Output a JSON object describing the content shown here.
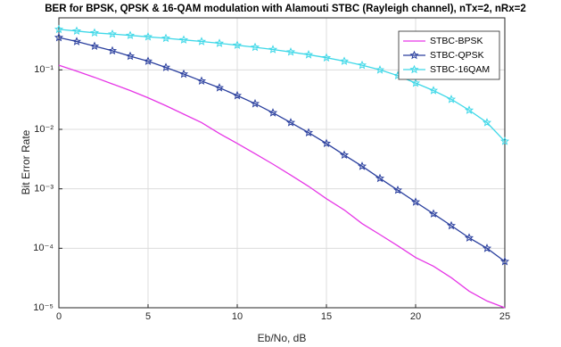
{
  "chart_data": {
    "type": "line",
    "title": "BER for BPSK, QPSK & 16-QAM modulation with Alamouti STBC (Rayleigh channel), nTx=2, nRx=2",
    "x_label": "Eb/No, dB",
    "y_label": "Bit Error Rate",
    "x": [
      0,
      1,
      2,
      3,
      4,
      5,
      6,
      7,
      8,
      9,
      10,
      11,
      12,
      13,
      14,
      15,
      16,
      17,
      18,
      19,
      20,
      21,
      22,
      23,
      24,
      25
    ],
    "series": [
      {
        "name": "STBC-BPSK",
        "color": "#e636e6",
        "marker": "none",
        "values": [
          0.12,
          0.095,
          0.075,
          0.058,
          0.045,
          0.034,
          0.025,
          0.018,
          0.013,
          0.0085,
          0.0058,
          0.0039,
          0.0026,
          0.0017,
          0.0011,
          0.00068,
          0.00044,
          0.00026,
          0.00017,
          0.00011,
          7e-05,
          5e-05,
          3.2e-05,
          1.9e-05,
          1.3e-05,
          1e-05
        ]
      },
      {
        "name": "STBC-QPSK",
        "color": "#2a3f9e",
        "marker": "star",
        "values": [
          0.35,
          0.3,
          0.25,
          0.21,
          0.17,
          0.14,
          0.11,
          0.085,
          0.065,
          0.05,
          0.037,
          0.027,
          0.019,
          0.013,
          0.0088,
          0.0058,
          0.0037,
          0.0024,
          0.0015,
          0.00095,
          0.0006,
          0.00038,
          0.00024,
          0.00015,
          0.0001,
          6e-05
        ]
      },
      {
        "name": "STBC-16QAM",
        "color": "#3fd8e8",
        "marker": "star",
        "values": [
          0.48,
          0.45,
          0.42,
          0.4,
          0.38,
          0.36,
          0.34,
          0.32,
          0.3,
          0.28,
          0.26,
          0.24,
          0.22,
          0.2,
          0.18,
          0.16,
          0.14,
          0.12,
          0.1,
          0.08,
          0.06,
          0.045,
          0.032,
          0.021,
          0.013,
          0.0063
        ]
      }
    ],
    "xlim": [
      0,
      25
    ],
    "xticks": [
      0,
      5,
      10,
      15,
      20,
      25
    ],
    "ylim": [
      1e-05,
      0.75
    ],
    "y_log": true,
    "yticks": [
      {
        "value": 1e-05,
        "label": "10⁻⁵"
      },
      {
        "value": 0.0001,
        "label": "10⁻⁴"
      },
      {
        "value": 0.001,
        "label": "10⁻³"
      },
      {
        "value": 0.01,
        "label": "10⁻²"
      },
      {
        "value": 0.1,
        "label": "10⁻¹"
      }
    ],
    "grid": true,
    "legend": "upper right"
  }
}
